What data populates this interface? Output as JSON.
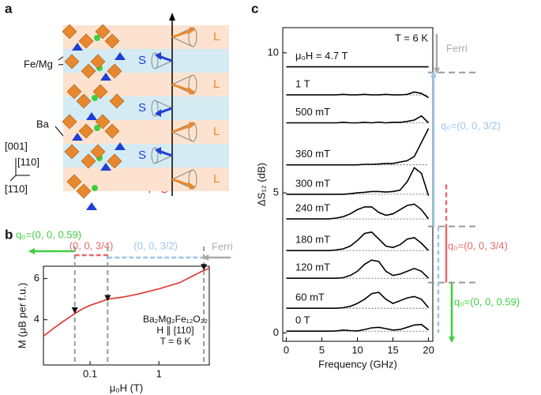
{
  "panel_labels": [
    "a",
    "b",
    "c"
  ],
  "structure": {
    "fe_mg": "Fe/Mg",
    "ba": "Ba",
    "dir_001": "[001]",
    "dir_110": "[110]",
    "dir_1b10": "[1̄10]",
    "polarization": "P ⊗",
    "layers": [
      "L",
      "S",
      "L",
      "S",
      "L",
      "S",
      "L"
    ]
  },
  "chart_data": [
    {
      "type": "line",
      "xlog": true,
      "xlabel": "μ₀H (T)",
      "ylabel": "M (μB per f.u.)",
      "xlim": [
        0.021,
        5.4
      ],
      "ylim": [
        1.8,
        6.6
      ],
      "xticks": [
        0.1,
        1
      ],
      "yticks": [
        4,
        6
      ],
      "series": [
        {
          "color": "#e0302a",
          "x": [
            0.021,
            0.03,
            0.04,
            0.06,
            0.08,
            0.1,
            0.15,
            0.18,
            0.3,
            0.5,
            1,
            2,
            3,
            4.5,
            5.4
          ],
          "values": [
            3.2,
            3.6,
            3.9,
            4.3,
            4.55,
            4.7,
            4.9,
            5.0,
            5.1,
            5.25,
            5.5,
            5.8,
            6.1,
            6.4,
            6.5
          ]
        }
      ],
      "markers": {
        "x": [
          0.06,
          0.18,
          4.5
        ],
        "values": [
          4.45,
          5.05,
          6.55
        ]
      },
      "dividers": [
        0.06,
        0.18,
        4.5
      ],
      "annotations": [
        "Ba₂Mg₂Fe₁₂O₂₂",
        "H ∥ [110]",
        "T = 6 K"
      ],
      "phases": [
        {
          "label": "q₀=(0, 0, 0.59)",
          "color": "#3ecf3e"
        },
        {
          "label": "(0, 0, 3/4)",
          "color": "#e86a6a"
        },
        {
          "label": "(0, 0, 3/2)",
          "color": "#9ec5e8"
        },
        {
          "label": "Ferri",
          "color": "#aaaaaa"
        }
      ]
    },
    {
      "type": "line",
      "xlabel": "Frequency (GHz)",
      "ylabel": "ΔS₁₂ (dB)",
      "annotation": "T = 6 K",
      "xlim": [
        -0.5,
        20.6
      ],
      "ylim": [
        -0.3,
        10.9
      ],
      "xticks": [
        0,
        5,
        10,
        15,
        20
      ],
      "yticks": [
        0,
        5,
        10
      ],
      "x": [
        0,
        1,
        2,
        3,
        4,
        5,
        6,
        7,
        8,
        9,
        10,
        11,
        12,
        13,
        14,
        15,
        16,
        17,
        18,
        19,
        20
      ],
      "series": [
        {
          "name": "μ₀H = 4.7 T",
          "color": "#000000",
          "values": [
            9.5,
            9.5,
            9.5,
            9.5,
            9.5,
            9.5,
            9.5,
            9.5,
            9.5,
            9.5,
            9.5,
            9.5,
            9.5,
            9.5,
            9.5,
            9.5,
            9.5,
            9.5,
            9.5,
            9.5,
            9.5
          ]
        },
        {
          "name": "1 T",
          "color": "#000000",
          "values": [
            8.5,
            8.5,
            8.5,
            8.5,
            8.5,
            8.5,
            8.5,
            8.5,
            8.52,
            8.5,
            8.5,
            8.52,
            8.5,
            8.5,
            8.52,
            8.5,
            8.5,
            8.52,
            8.6,
            8.55,
            8.4
          ]
        },
        {
          "name": "500 mT",
          "color": "#000000",
          "values": [
            7.5,
            7.5,
            7.5,
            7.5,
            7.5,
            7.5,
            7.5,
            7.5,
            7.52,
            7.5,
            7.5,
            7.52,
            7.5,
            7.53,
            7.5,
            7.52,
            7.52,
            7.55,
            7.6,
            7.75,
            7.5
          ]
        },
        {
          "name": "360 mT",
          "color": "#000000",
          "values": [
            6.0,
            6.0,
            6.0,
            6.0,
            6.0,
            6.0,
            6.0,
            6.0,
            6.0,
            6.0,
            6.0,
            6.02,
            6.02,
            6.03,
            6.05,
            6.05,
            6.1,
            6.15,
            6.3,
            6.8,
            7.3
          ]
        },
        {
          "name": "300 mT",
          "color": "#000000",
          "values": [
            4.95,
            4.95,
            4.95,
            4.95,
            4.95,
            4.95,
            4.95,
            4.95,
            4.95,
            4.97,
            5.0,
            5.02,
            5.05,
            5.05,
            5.03,
            5.05,
            5.1,
            5.4,
            5.9,
            5.7,
            4.9
          ]
        },
        {
          "name": "240 mT",
          "color": "#000000",
          "values": [
            4.07,
            4.07,
            4.07,
            4.07,
            4.07,
            4.07,
            4.07,
            4.1,
            4.15,
            4.25,
            4.4,
            4.5,
            4.5,
            4.3,
            4.2,
            4.25,
            4.4,
            4.55,
            4.6,
            4.4,
            4.07
          ]
        },
        {
          "name": "180 mT",
          "color": "#000000",
          "values": [
            2.94,
            2.94,
            2.94,
            2.94,
            2.94,
            2.94,
            2.94,
            2.96,
            3.0,
            3.1,
            3.3,
            3.55,
            3.6,
            3.35,
            3.1,
            3.05,
            3.15,
            3.35,
            3.4,
            3.2,
            2.94
          ]
        },
        {
          "name": "120 mT",
          "color": "#000000",
          "values": [
            1.95,
            1.95,
            1.95,
            1.95,
            1.95,
            1.95,
            1.95,
            1.95,
            1.97,
            2.05,
            2.2,
            2.45,
            2.6,
            2.55,
            2.2,
            2.05,
            2.1,
            2.2,
            2.3,
            2.2,
            1.95
          ]
        },
        {
          "name": "60 mT",
          "color": "#000000",
          "values": [
            0.88,
            0.88,
            0.88,
            0.88,
            0.88,
            0.88,
            0.88,
            0.88,
            0.9,
            0.95,
            1.05,
            1.2,
            1.4,
            1.45,
            1.2,
            1.05,
            1.15,
            1.25,
            1.3,
            1.2,
            0.9
          ]
        },
        {
          "name": "0 T",
          "color": "#000000",
          "values": [
            0.06,
            0.06,
            0.06,
            0.06,
            0.06,
            0.06,
            0.06,
            0.07,
            0.1,
            0.08,
            0.07,
            0.12,
            0.18,
            0.2,
            0.15,
            0.1,
            0.12,
            0.2,
            0.28,
            0.3,
            0.1
          ]
        }
      ],
      "boundaries": [
        9.3,
        3.8,
        1.8
      ],
      "phases": [
        {
          "label": "Ferri",
          "color": "#aaaaaa"
        },
        {
          "label": "q₀=(0, 0, 3/2)",
          "color": "#9ec5e8"
        },
        {
          "label": "q₀=(0, 0, 3/4)",
          "color": "#e86a6a"
        },
        {
          "label": "q₀=(0, 0, 0.59)",
          "color": "#3ecf3e"
        }
      ]
    }
  ]
}
